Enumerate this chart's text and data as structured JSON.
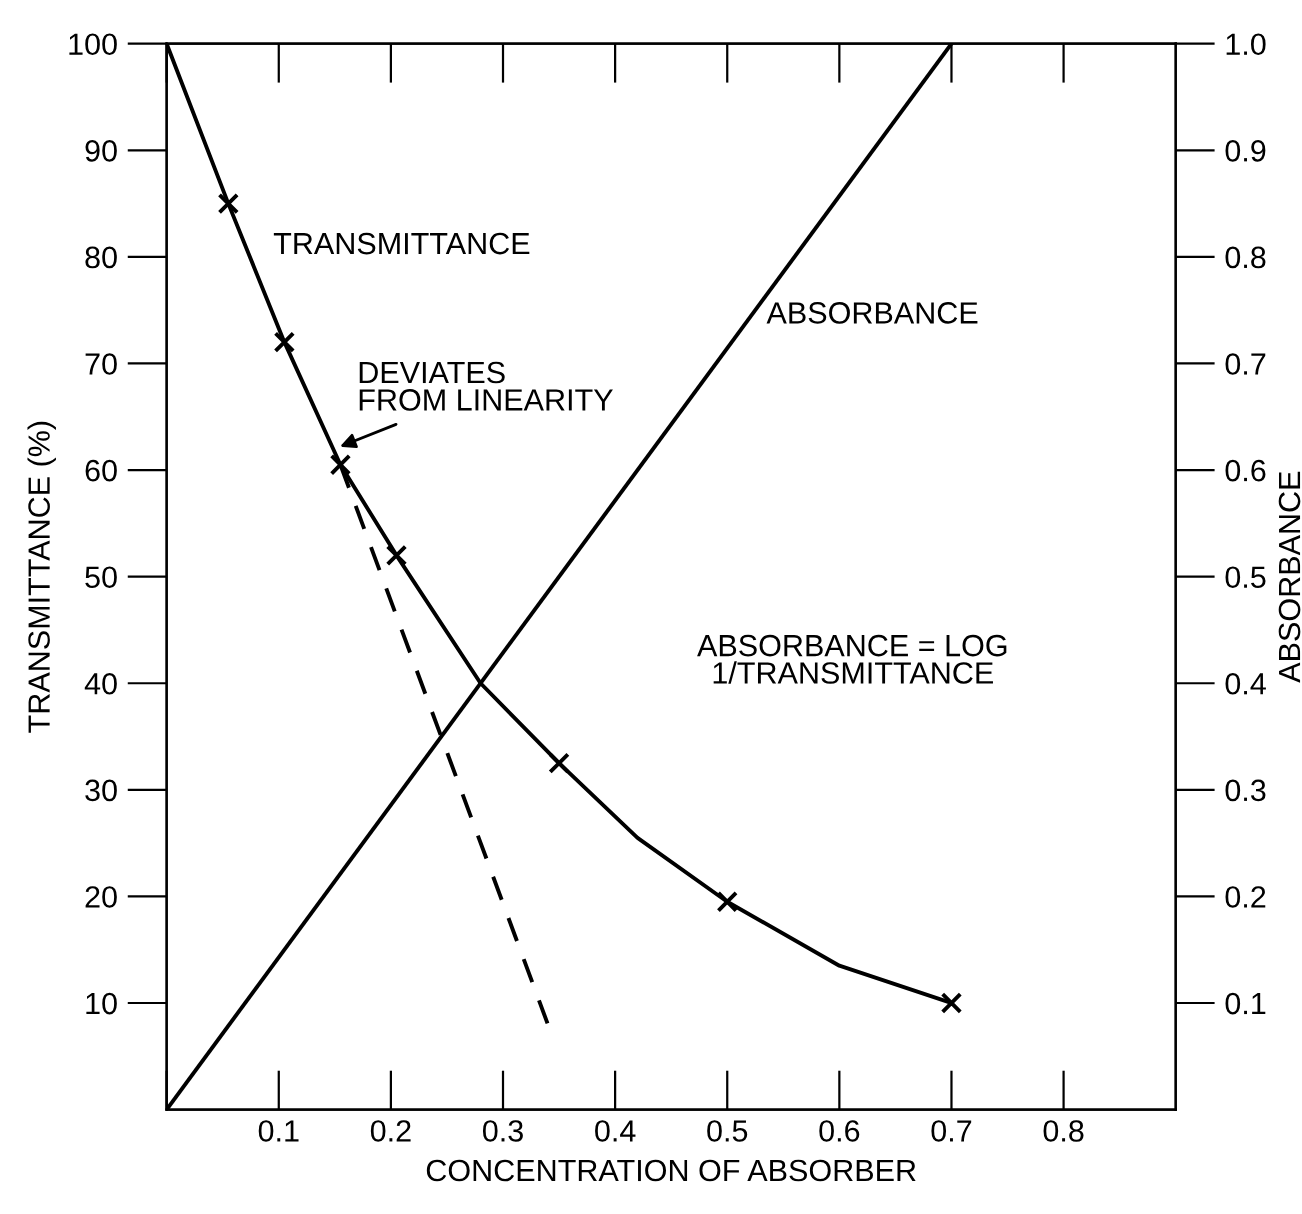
{
  "chart_data": {
    "type": "line",
    "xlabel": "CONCENTRATION OF ABSORBER",
    "ylabel": "TRANSMITTANCE (%)",
    "y2label": "ABSORBANCE",
    "xlim": [
      0,
      0.9
    ],
    "xticks": [
      {
        "value": 0,
        "label": null
      },
      0.1,
      0.2,
      0.3,
      0.4,
      0.5,
      0.6,
      0.7,
      0.8
    ],
    "ylim": [
      0,
      100
    ],
    "yticks": [
      10,
      20,
      30,
      40,
      50,
      60,
      70,
      80,
      90,
      100
    ],
    "y2lim": [
      0,
      1.0
    ],
    "y2ticks": [
      0.1,
      0.2,
      0.3,
      0.4,
      0.5,
      0.6,
      0.7,
      0.8,
      0.9,
      {
        "value": 1.0,
        "label": "1.0"
      }
    ],
    "grid": false,
    "series": [
      {
        "name": "TRANSMITTANCE",
        "color": "#000000",
        "line_style": "solid",
        "marker": "none",
        "x": [
          0,
          0.055,
          0.105,
          0.155,
          0.205,
          0.28,
          0.35,
          0.42,
          0.5,
          0.6,
          0.7
        ],
        "values": [
          100,
          85,
          72,
          60.5,
          52,
          40,
          32.5,
          25.5,
          19.5,
          13.5,
          10
        ]
      },
      {
        "type": "scatter",
        "color": "#000000",
        "marker": "cross",
        "x": [
          0.055,
          0.105,
          0.155,
          0.205,
          0.35,
          0.5,
          0.7
        ],
        "values": [
          85,
          72,
          60.5,
          52,
          32.5,
          19.5,
          10
        ]
      },
      {
        "color": "#000000",
        "line_style": "dashed",
        "marker": "none",
        "x": [
          0.155,
          0.34
        ],
        "values": [
          60.5,
          8
        ]
      },
      {
        "name": "ABSORBANCE",
        "color": "#000000",
        "line_style": "solid",
        "marker": "none",
        "axis": "y2",
        "x": [
          0,
          0.7
        ],
        "values": [
          0,
          1.0
        ]
      }
    ],
    "annotations": [
      {
        "text": "DEVIATES\nFROM LINEARITY",
        "x": 0.15,
        "y": 62
      },
      "ABSORBANCE = LOG\n1/TRANSMITTANCE"
    ]
  }
}
